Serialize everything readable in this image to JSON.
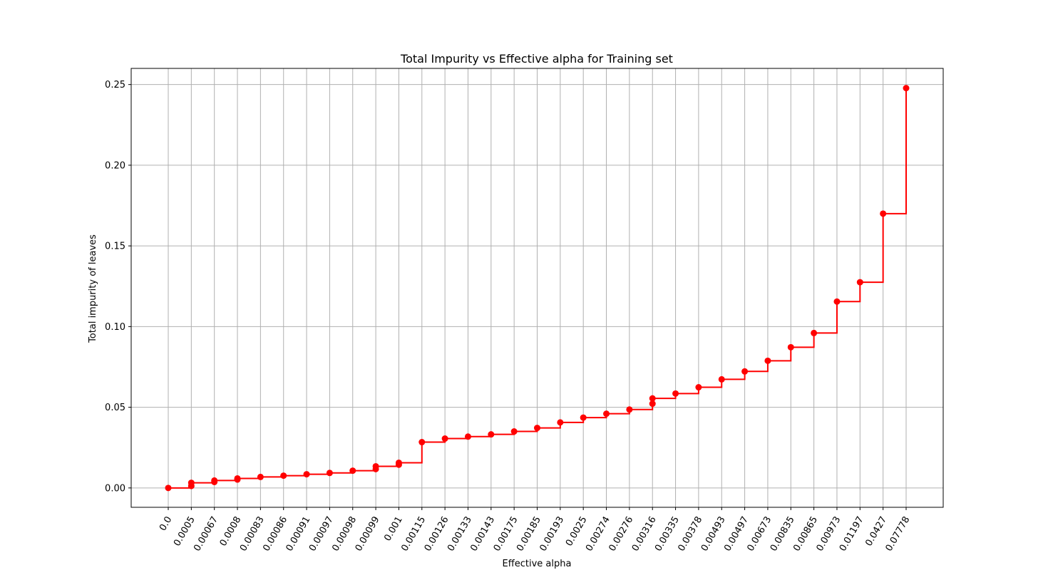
{
  "chart_data": {
    "type": "line",
    "title": "Total Impurity vs Effective alpha for Training set",
    "xlabel": "Effective alpha",
    "ylabel": "Total impurity of leaves",
    "x_ticks": [
      "0.0",
      "0.0005",
      "0.00067",
      "0.0008",
      "0.00083",
      "0.00086",
      "0.00091",
      "0.00097",
      "0.00098",
      "0.00099",
      "0.001",
      "0.00115",
      "0.00126",
      "0.00133",
      "0.00143",
      "0.00175",
      "0.00185",
      "0.00193",
      "0.0025",
      "0.00274",
      "0.00276",
      "0.00316",
      "0.00335",
      "0.00378",
      "0.00493",
      "0.00497",
      "0.00673",
      "0.00835",
      "0.00865",
      "0.00973",
      "0.01197",
      "0.0427",
      "0.07778"
    ],
    "y_ticks": [
      "0.00",
      "0.05",
      "0.10",
      "0.15",
      "0.20",
      "0.25"
    ],
    "ylim": [
      -0.012,
      0.26
    ],
    "grid": true,
    "line_style": "steps-post",
    "marker": "circle",
    "series": [
      {
        "color": "#ff0000",
        "points": [
          {
            "x": "0.0",
            "y": 0.0
          },
          {
            "x": "0.0005",
            "y": 0.0012
          },
          {
            "x": "0.0005",
            "y": 0.0032
          },
          {
            "x": "0.00067",
            "y": 0.0037
          },
          {
            "x": "0.00067",
            "y": 0.0046
          },
          {
            "x": "0.0008",
            "y": 0.0052
          },
          {
            "x": "0.0008",
            "y": 0.0059
          },
          {
            "x": "0.00083",
            "y": 0.0068
          },
          {
            "x": "0.00086",
            "y": 0.0076
          },
          {
            "x": "0.00091",
            "y": 0.0085
          },
          {
            "x": "0.00097",
            "y": 0.0093
          },
          {
            "x": "0.00098",
            "y": 0.0107
          },
          {
            "x": "0.00099",
            "y": 0.0117
          },
          {
            "x": "0.00099",
            "y": 0.0134
          },
          {
            "x": "0.001",
            "y": 0.0144
          },
          {
            "x": "0.001",
            "y": 0.0156
          },
          {
            "x": "0.00115",
            "y": 0.0284
          },
          {
            "x": "0.00126",
            "y": 0.0306
          },
          {
            "x": "0.00133",
            "y": 0.0318
          },
          {
            "x": "0.00143",
            "y": 0.0332
          },
          {
            "x": "0.00175",
            "y": 0.035
          },
          {
            "x": "0.00185",
            "y": 0.0372
          },
          {
            "x": "0.00193",
            "y": 0.0406
          },
          {
            "x": "0.0025",
            "y": 0.0436
          },
          {
            "x": "0.00274",
            "y": 0.046
          },
          {
            "x": "0.00276",
            "y": 0.0486
          },
          {
            "x": "0.00316",
            "y": 0.0522
          },
          {
            "x": "0.00316",
            "y": 0.0555
          },
          {
            "x": "0.00335",
            "y": 0.0585
          },
          {
            "x": "0.00378",
            "y": 0.0624
          },
          {
            "x": "0.00493",
            "y": 0.0673
          },
          {
            "x": "0.00497",
            "y": 0.0722
          },
          {
            "x": "0.00673",
            "y": 0.0788
          },
          {
            "x": "0.00835",
            "y": 0.0872
          },
          {
            "x": "0.00865",
            "y": 0.096
          },
          {
            "x": "0.00973",
            "y": 0.1155
          },
          {
            "x": "0.01197",
            "y": 0.1275
          },
          {
            "x": "0.0427",
            "y": 0.17
          },
          {
            "x": "0.07778",
            "y": 0.2478
          }
        ]
      }
    ]
  }
}
